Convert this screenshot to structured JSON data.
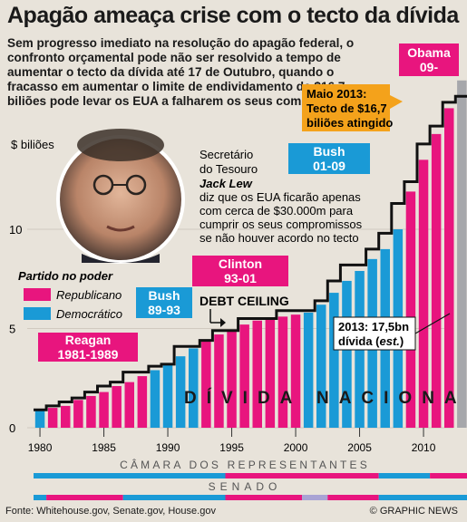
{
  "header": {
    "title": "Apagão ameaça crise com o tecto da dívida",
    "intro": "Sem progresso imediato na resolução do apagão federal, o confronto orçamental pode não ser resolvido a tempo de aumentar o tecto da dívida até 17 de Outubro, quando o fracasso em aumentar o limite de endividamento de $16,7 biliões pode levar os EUA a falharem os seus compromissos"
  },
  "annotations": {
    "secretary_line1": "Secretário",
    "secretary_line2": "do Tesouro",
    "secretary_name": "Jack Lew",
    "secretary_line4": "diz que os EUA ficarão apenas",
    "secretary_line5": "com cerca de $30.000m para",
    "secretary_line6": "cumprir os seus compromissos",
    "secretary_line7": "se não houver acordo no tecto",
    "debt_ceiling": "DEBT CEILING",
    "ceiling_callout_line1": "Maio 2013:",
    "ceiling_callout_line2": "Tecto de $16,7",
    "ceiling_callout_line3": "biliões atingido",
    "debt_callout_line1": "2013: 17,5bn",
    "debt_callout_line2_a": "dívida (",
    "debt_callout_line2_b": "est.",
    "debt_callout_line2_c": ")",
    "national_debt": "DÍVIDA NACIONAL",
    "house": "CÂMARA DOS REPRESENTANTES",
    "senate": "SENADO"
  },
  "legend": {
    "title": "Partido no poder",
    "republican": "Republicano",
    "democratic": "Democrático"
  },
  "presidents": [
    {
      "line1": "Reagan",
      "line2": "1981-1989",
      "party": "R"
    },
    {
      "line1": "Bush",
      "line2": "89-93",
      "party": "D"
    },
    {
      "line1": "Clinton",
      "line2": "93-01",
      "party": "R"
    },
    {
      "line1": "Bush",
      "line2": "01-09",
      "party": "D"
    },
    {
      "line1": "Obama",
      "line2": "09-",
      "party": "R"
    }
  ],
  "colors": {
    "republican": "#e8157e",
    "democratic": "#1a9ad6",
    "estimate": "#a6a7ab",
    "label_bg": "#f2bfd3",
    "callout": "#f4a21b",
    "background": "#e8e3da",
    "other_party": "#a9a3d4"
  },
  "footer": {
    "source": "Fonte: Whitehouse.gov, Senate.gov, House.gov",
    "credit": "© GRAPHIC NEWS"
  },
  "chart_data": {
    "type": "bar",
    "ylabel": "$ biliões",
    "ylim": [
      0,
      18
    ],
    "yticks": [
      0,
      5,
      10
    ],
    "xticks": [
      1980,
      1985,
      1990,
      1995,
      2000,
      2005,
      2010
    ],
    "x": [
      1980,
      1981,
      1982,
      1983,
      1984,
      1985,
      1986,
      1987,
      1988,
      1989,
      1990,
      1991,
      1992,
      1993,
      1994,
      1995,
      1996,
      1997,
      1998,
      1999,
      2000,
      2001,
      2002,
      2003,
      2004,
      2005,
      2006,
      2007,
      2008,
      2009,
      2010,
      2011,
      2012,
      2013
    ],
    "values": [
      0.9,
      1.0,
      1.1,
      1.4,
      1.6,
      1.8,
      2.1,
      2.3,
      2.6,
      2.9,
      3.2,
      3.6,
      4.0,
      4.4,
      4.7,
      4.9,
      5.2,
      5.4,
      5.5,
      5.6,
      5.7,
      5.8,
      6.2,
      6.8,
      7.4,
      7.9,
      8.5,
      9.0,
      10.0,
      11.9,
      13.5,
      14.8,
      16.1,
      17.5
    ],
    "bar_party": [
      "D",
      "R",
      "R",
      "R",
      "R",
      "R",
      "R",
      "R",
      "R",
      "D",
      "D",
      "D",
      "D",
      "R",
      "R",
      "R",
      "R",
      "R",
      "R",
      "R",
      "R",
      "D",
      "D",
      "D",
      "D",
      "D",
      "D",
      "D",
      "D",
      "R",
      "R",
      "R",
      "R",
      "E"
    ],
    "ceiling_step": {
      "x": [
        1980,
        1981,
        1982,
        1983,
        1984,
        1985,
        1986,
        1987,
        1988,
        1989,
        1990,
        1991,
        1992,
        1993,
        1994,
        1995,
        1996,
        1997,
        1998,
        1999,
        2000,
        2001,
        2002,
        2003,
        2004,
        2005,
        2006,
        2007,
        2008,
        2009,
        2010,
        2011,
        2012,
        2013
      ],
      "y": [
        0.9,
        1.1,
        1.3,
        1.5,
        1.8,
        2.1,
        2.3,
        2.8,
        2.8,
        3.1,
        3.2,
        4.1,
        4.1,
        4.4,
        4.9,
        4.9,
        5.5,
        5.5,
        5.5,
        5.9,
        5.9,
        5.9,
        6.4,
        7.4,
        8.2,
        8.2,
        9.0,
        9.8,
        11.3,
        12.4,
        14.3,
        15.2,
        16.4,
        16.7
      ]
    },
    "house_strip": [
      {
        "from": 1980,
        "to": 1995,
        "party": "D"
      },
      {
        "from": 1995,
        "to": 2007,
        "party": "R"
      },
      {
        "from": 2007,
        "to": 2011,
        "party": "D"
      },
      {
        "from": 2011,
        "to": 2014,
        "party": "R"
      }
    ],
    "senate_strip": [
      {
        "from": 1980,
        "to": 1981,
        "party": "D"
      },
      {
        "from": 1981,
        "to": 1987,
        "party": "R"
      },
      {
        "from": 1987,
        "to": 1995,
        "party": "D"
      },
      {
        "from": 1995,
        "to": 2001,
        "party": "R"
      },
      {
        "from": 2001,
        "to": 2003,
        "party": "X"
      },
      {
        "from": 2003,
        "to": 2007,
        "party": "R"
      },
      {
        "from": 2007,
        "to": 2014,
        "party": "D"
      }
    ]
  }
}
